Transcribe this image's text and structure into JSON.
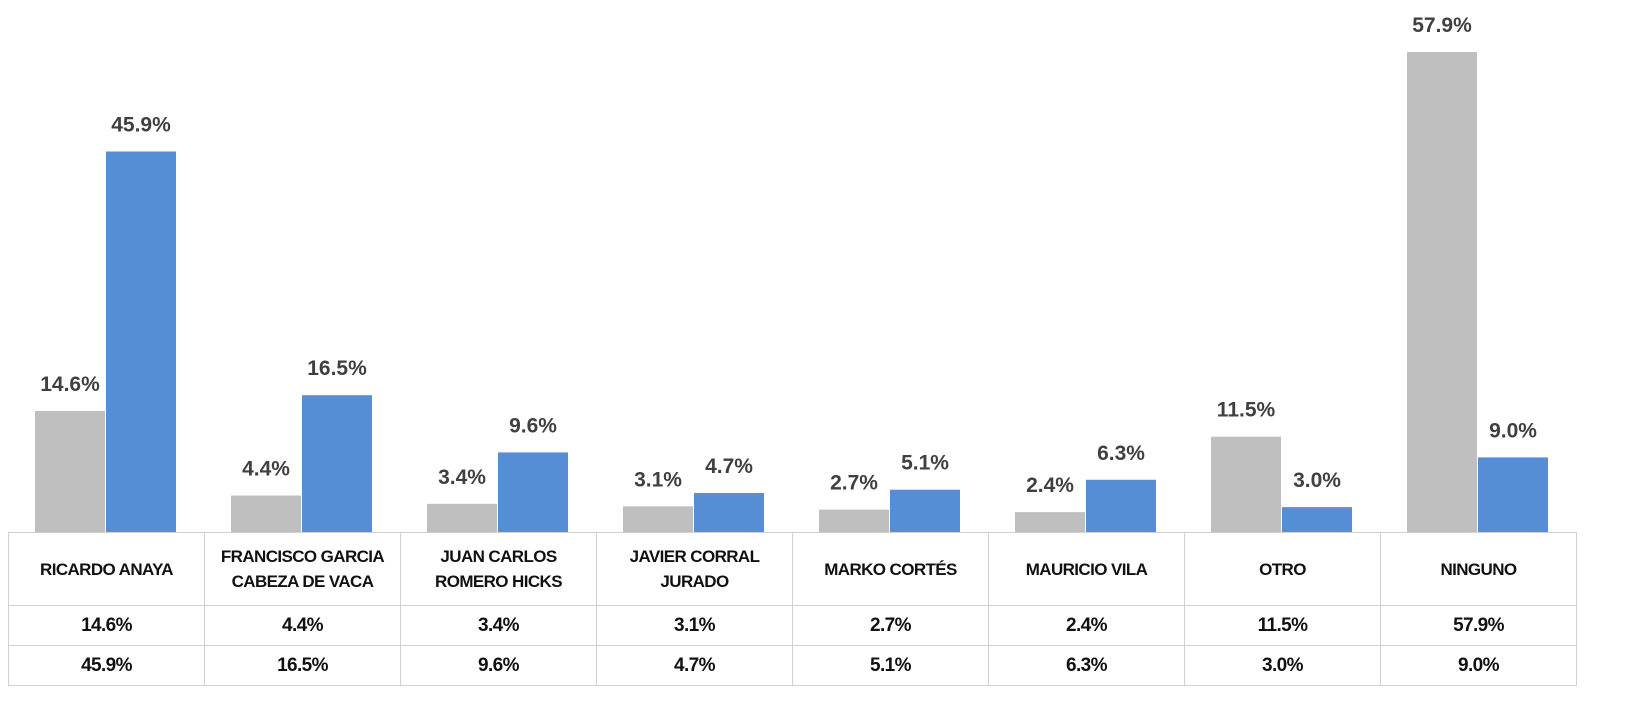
{
  "chart_data": {
    "type": "bar",
    "categories": [
      "RICARDO ANAYA",
      "FRANCISCO GARCIA CABEZA DE VACA",
      "JUAN CARLOS ROMERO HICKS",
      "JAVIER CORRAL JURADO",
      "MARKO CORTÉS",
      "MAURICIO VILA",
      "OTRO",
      "NINGUNO"
    ],
    "series": [
      {
        "color": "#bfbfbf",
        "values": [
          14.6,
          4.4,
          3.4,
          3.1,
          2.7,
          2.4,
          11.5,
          57.9
        ],
        "value_labels": [
          "14.6%",
          "4.4%",
          "3.4%",
          "3.1%",
          "2.7%",
          "2.4%",
          "11.5%",
          "57.9%"
        ]
      },
      {
        "color": "#558ed5",
        "values": [
          45.9,
          16.5,
          9.6,
          4.7,
          5.1,
          6.3,
          3.0,
          9.0
        ],
        "value_labels": [
          "45.9%",
          "16.5%",
          "9.6%",
          "4.7%",
          "5.1%",
          "6.3%",
          "3.0%",
          "9.0%"
        ]
      }
    ]
  }
}
